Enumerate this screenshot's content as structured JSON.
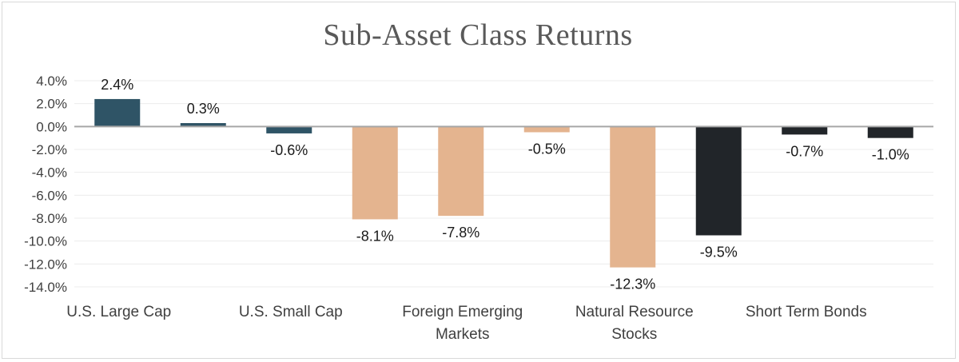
{
  "chart_data": {
    "type": "bar",
    "title": "Sub-Asset Class Returns",
    "xlabel": "",
    "ylabel": "",
    "ylim": [
      -14,
      4
    ],
    "yticks": [
      4,
      2,
      0,
      -2,
      -4,
      -6,
      -8,
      -10,
      -12,
      -14
    ],
    "ytick_labels": [
      "4.0%",
      "2.0%",
      "0.0%",
      "-2.0%",
      "-4.0%",
      "-6.0%",
      "-8.0%",
      "-10.0%",
      "-12.0%",
      "-14.0%"
    ],
    "grid": true,
    "legend": "none",
    "categories": [
      {
        "label_lines": [
          "U.S. Large Cap"
        ]
      },
      {
        "label_lines": [
          "U.S. Small Cap"
        ]
      },
      {
        "label_lines": [
          "Foreign Emerging",
          "Markets"
        ]
      },
      {
        "label_lines": [
          "Natural Resource",
          "Stocks"
        ]
      },
      {
        "label_lines": [
          "Short Term Bonds"
        ]
      }
    ],
    "bars": [
      {
        "value": 2.4,
        "label": "2.4%",
        "color": "#2f5466"
      },
      {
        "value": 0.3,
        "label": "0.3%",
        "color": "#2f5466"
      },
      {
        "value": -0.6,
        "label": "-0.6%",
        "color": "#2f5466"
      },
      {
        "value": -8.1,
        "label": "-8.1%",
        "color": "#e4b48f"
      },
      {
        "value": -7.8,
        "label": "-7.8%",
        "color": "#e4b48f"
      },
      {
        "value": -0.5,
        "label": "-0.5%",
        "color": "#e4b48f"
      },
      {
        "value": -12.3,
        "label": "-12.3%",
        "color": "#e4b48f"
      },
      {
        "value": -9.5,
        "label": "-9.5%",
        "color": "#212529"
      },
      {
        "value": -0.7,
        "label": "-0.7%",
        "color": "#212529"
      },
      {
        "value": -1.0,
        "label": "-1.0%",
        "color": "#212529"
      }
    ],
    "colors": {
      "grid": "#ececec",
      "zero_line": "#a6a6a6",
      "text": "#404040"
    }
  }
}
